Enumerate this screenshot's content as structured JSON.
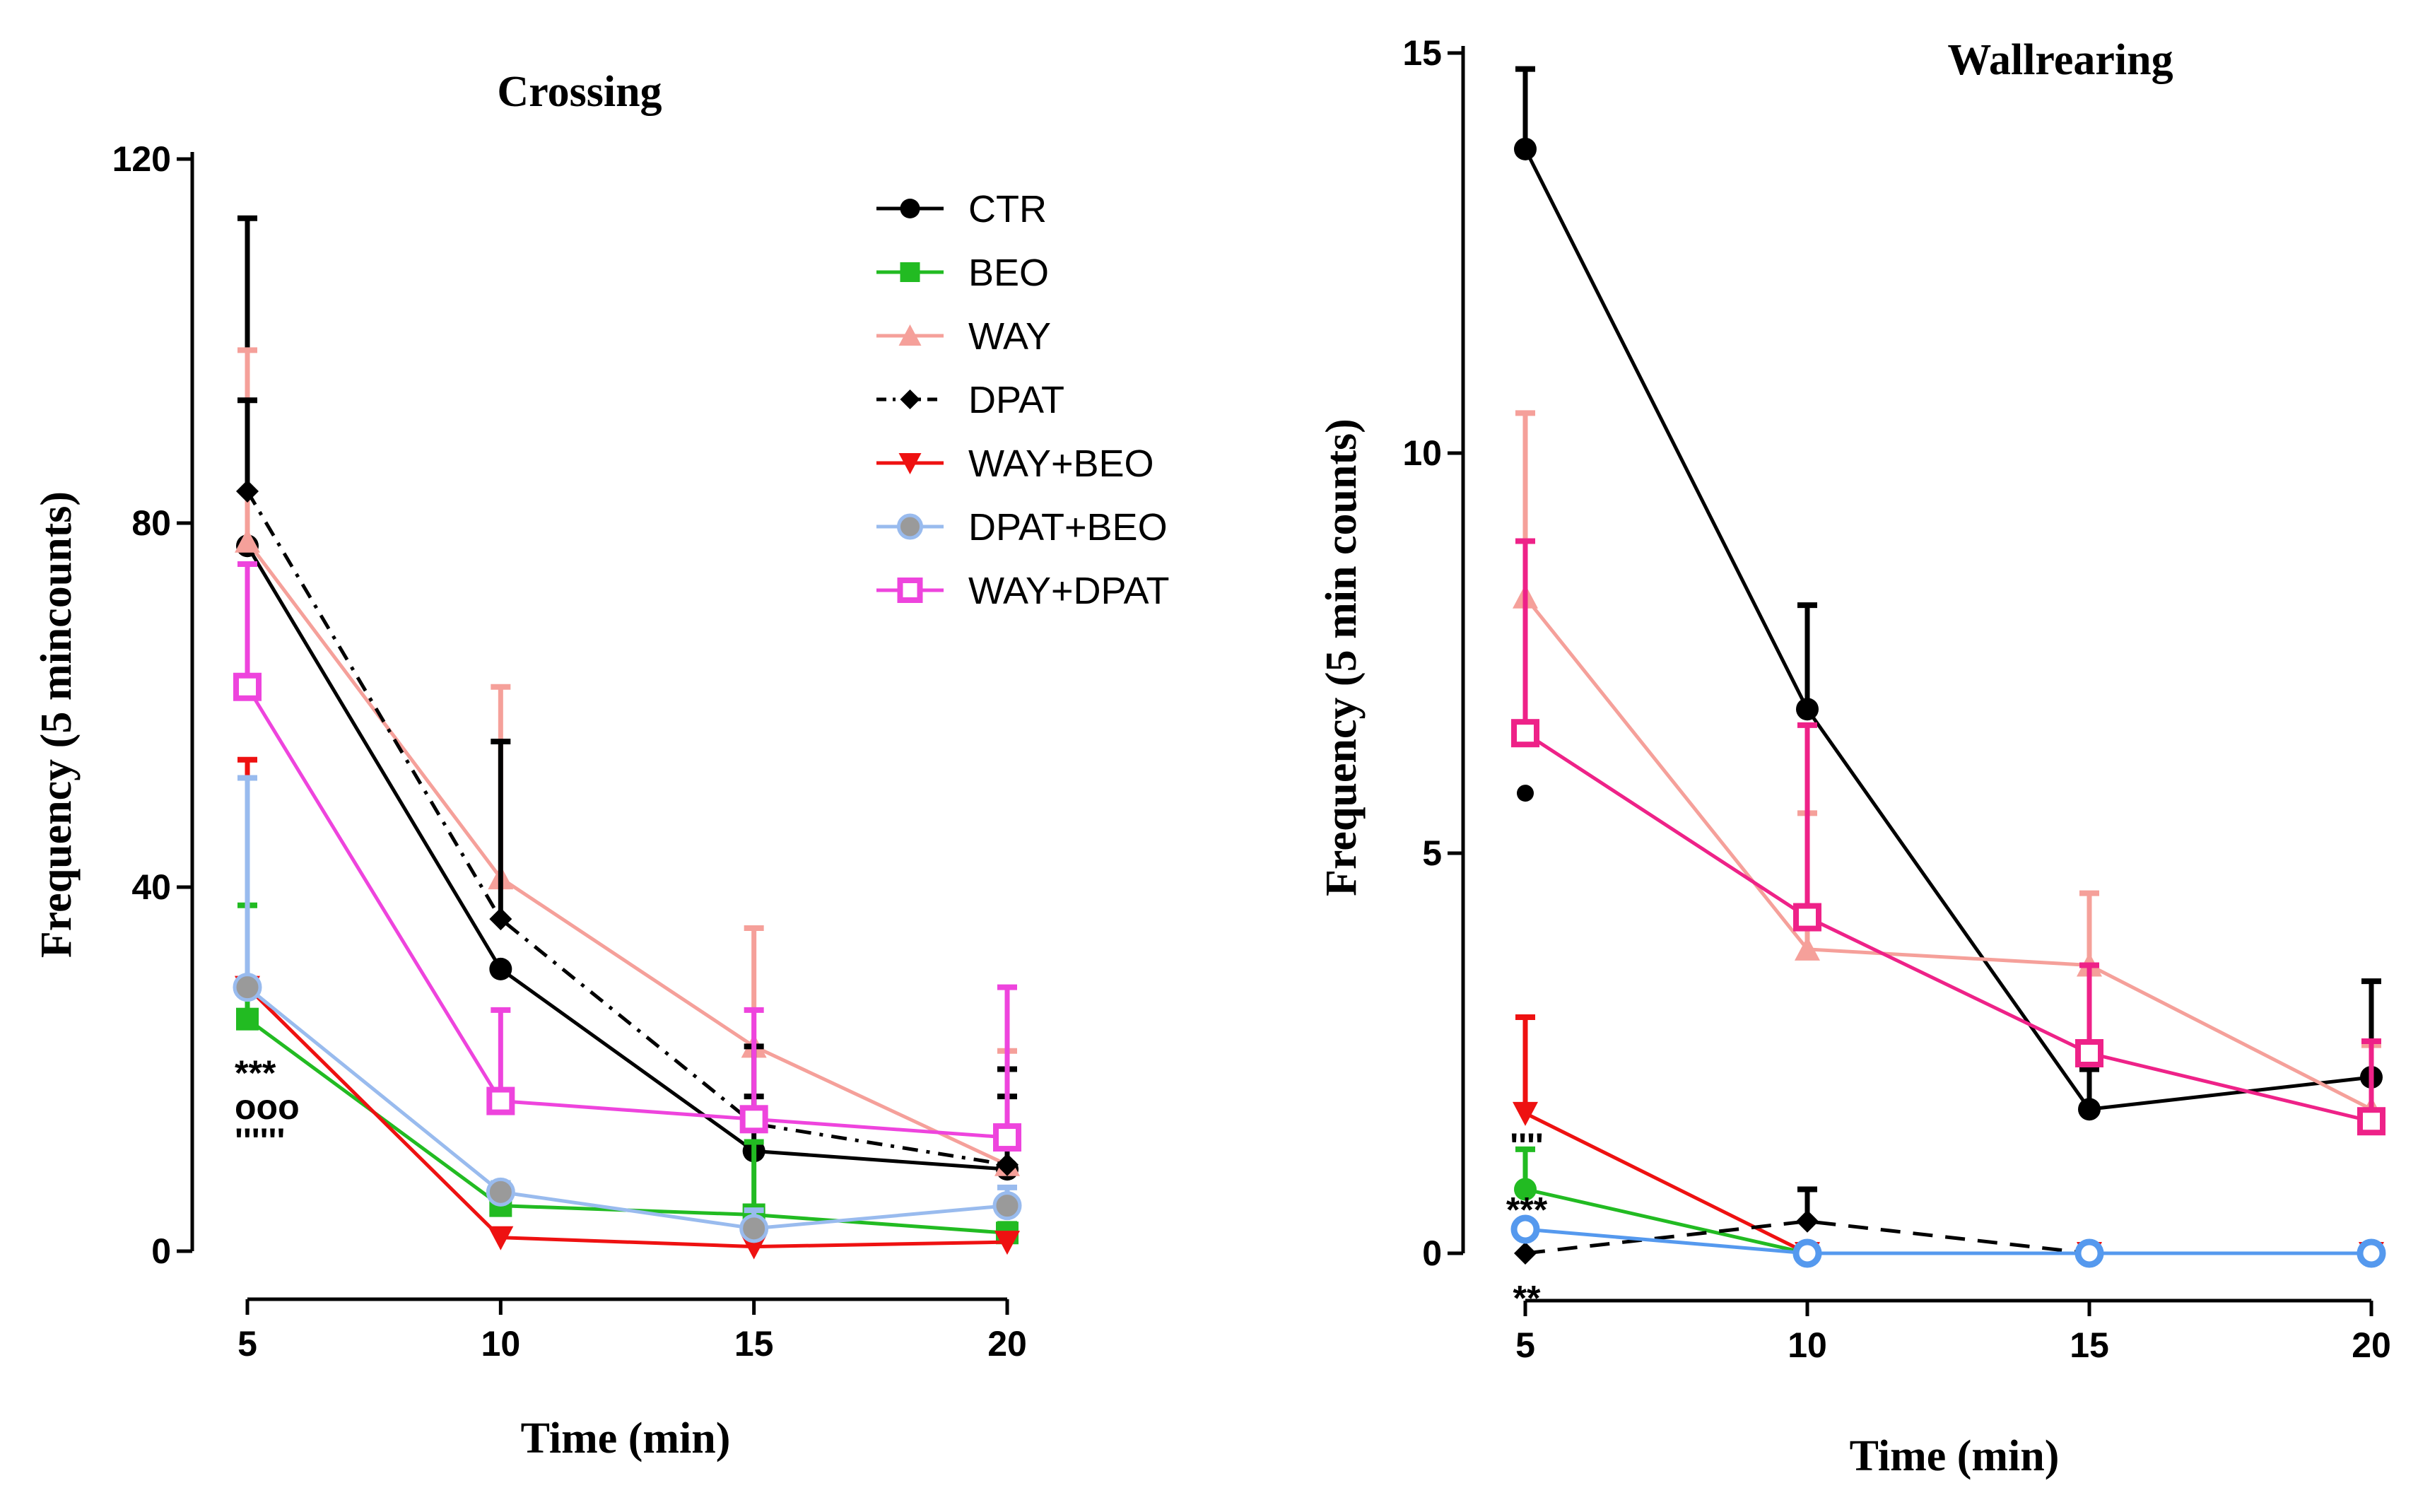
{
  "chart_data": [
    {
      "type": "line",
      "title": "Crossing",
      "xlabel": "Time (min)",
      "ylabel": "Frequency (5 mincounts)",
      "x": [
        5,
        10,
        15,
        20
      ],
      "xticks": [
        "5",
        "10",
        "15",
        "20"
      ],
      "yticks": [
        "0",
        "40",
        "80",
        "120"
      ],
      "xlim": [
        5,
        20
      ],
      "ylim": [
        0,
        120
      ],
      "series": [
        {
          "name": "CTR",
          "color": "#000000",
          "marker": "circle",
          "dash": "solid",
          "values": [
            77.5,
            31,
            11,
            9
          ],
          "errors": [
            36,
            0,
            6,
            8
          ]
        },
        {
          "name": "BEO",
          "color": "#22bb22",
          "marker": "square",
          "dash": "solid",
          "values": [
            25.5,
            5,
            4,
            2
          ],
          "errors": [
            12.5,
            2.5,
            8,
            1
          ]
        },
        {
          "name": "WAY",
          "color": "#f5a09a",
          "marker": "triangle",
          "dash": "solid",
          "values": [
            78,
            41,
            22.5,
            9.5
          ],
          "errors": [
            21,
            21,
            13,
            12.5
          ]
        },
        {
          "name": "DPAT",
          "color": "#000000",
          "marker": "diamond",
          "dash": "dashdot",
          "values": [
            83.5,
            36.5,
            14,
            9.5
          ],
          "errors": [
            10,
            19.5,
            8.5,
            10.5
          ]
        },
        {
          "name": "WAY+BEO",
          "color": "#ee1111",
          "marker": "triangle-down",
          "dash": "solid",
          "values": [
            29,
            1.5,
            0.5,
            1
          ],
          "errors": [
            25,
            0,
            0,
            0
          ]
        },
        {
          "name": "DPAT+BEO",
          "color": "#99bbee",
          "marker": "circle-grey",
          "dash": "solid",
          "values": [
            29,
            6.5,
            2.5,
            5
          ],
          "errors": [
            23,
            1,
            2,
            2
          ]
        },
        {
          "name": "WAY+DPAT",
          "color": "#ee44dd",
          "marker": "square-open",
          "dash": "solid",
          "values": [
            62,
            16.5,
            14.5,
            12.5
          ],
          "errors": [
            13.5,
            10,
            12,
            16.5
          ]
        }
      ],
      "annotations": [
        {
          "text": "***",
          "x": 5,
          "level": 1
        },
        {
          "text": "ooo",
          "x": 5,
          "level": 2
        },
        {
          "text": "''''''",
          "x": 5,
          "level": 3
        }
      ]
    },
    {
      "type": "line",
      "title": "Wallrearing",
      "xlabel": "Time (min)",
      "ylabel": "Frequency (5 min counts)",
      "x": [
        5,
        10,
        15,
        20
      ],
      "xticks": [
        "5",
        "10",
        "15",
        "20"
      ],
      "yticks": [
        "0",
        "5",
        "10",
        "15"
      ],
      "xlim": [
        5,
        20
      ],
      "ylim": [
        0,
        15
      ],
      "series": [
        {
          "name": "CTR",
          "color": "#000000",
          "marker": "circle",
          "dash": "solid",
          "values": [
            13.8,
            6.8,
            1.8,
            2.2
          ],
          "errors": [
            1,
            1.3,
            0.5,
            1.2
          ]
        },
        {
          "name": "WAY",
          "color": "#f5a09a",
          "marker": "triangle",
          "dash": "solid",
          "values": [
            8.2,
            3.8,
            3.6,
            1.8
          ],
          "errors": [
            2.3,
            1.7,
            0.9,
            0.8
          ]
        },
        {
          "name": "WAY+DPAT",
          "color": "#ee2288",
          "marker": "square-open",
          "dash": "solid",
          "values": [
            6.5,
            4.2,
            2.5,
            1.65
          ],
          "errors": [
            2.4,
            2.4,
            1.1,
            1
          ]
        },
        {
          "name": "WAY+BEO",
          "color": "#ee1111",
          "marker": "triangle-down",
          "dash": "solid",
          "values": [
            1.75,
            0,
            0,
            0
          ],
          "errors": [
            1.2,
            0,
            0,
            0
          ]
        },
        {
          "name": "BEO",
          "color": "#22bb22",
          "marker": "circle",
          "dash": "solid",
          "values": [
            0.8,
            0,
            0,
            0
          ],
          "errors": [
            0.5,
            0,
            0,
            0
          ]
        },
        {
          "name": "DPAT",
          "color": "#000000",
          "marker": "diamond",
          "dash": "dashed",
          "values": [
            0,
            0.4,
            0,
            0
          ],
          "errors": [
            0,
            0.4,
            0,
            0
          ]
        },
        {
          "name": "DPAT+BEO",
          "color": "#5599ee",
          "marker": "circle-open",
          "dash": "solid",
          "values": [
            0.3,
            0,
            0,
            0
          ],
          "errors": [
            0,
            0,
            0,
            0
          ]
        }
      ],
      "outlier": {
        "x": 5,
        "value": 5.75
      },
      "annotations": [
        {
          "text": "''''",
          "x": 5,
          "value": 1.35
        },
        {
          "text": "***",
          "x": 5,
          "value": 0.55
        },
        {
          "text": "**",
          "x": 5,
          "value": -0.55
        }
      ]
    }
  ],
  "legend": [
    {
      "label": "CTR",
      "color": "#000000",
      "marker": "circle",
      "dash": "solid"
    },
    {
      "label": "BEO",
      "color": "#22bb22",
      "marker": "square",
      "dash": "solid"
    },
    {
      "label": "WAY",
      "color": "#f5a09a",
      "marker": "triangle",
      "dash": "solid"
    },
    {
      "label": "DPAT",
      "color": "#000000",
      "marker": "diamond",
      "dash": "dashdot"
    },
    {
      "label": "WAY+BEO",
      "color": "#ee1111",
      "marker": "triangle-down",
      "dash": "solid"
    },
    {
      "label": "DPAT+BEO",
      "color": "#99bbee",
      "marker": "circle-grey",
      "dash": "solid"
    },
    {
      "label": "WAY+DPAT",
      "color": "#ee44dd",
      "marker": "square-open",
      "dash": "solid"
    }
  ]
}
